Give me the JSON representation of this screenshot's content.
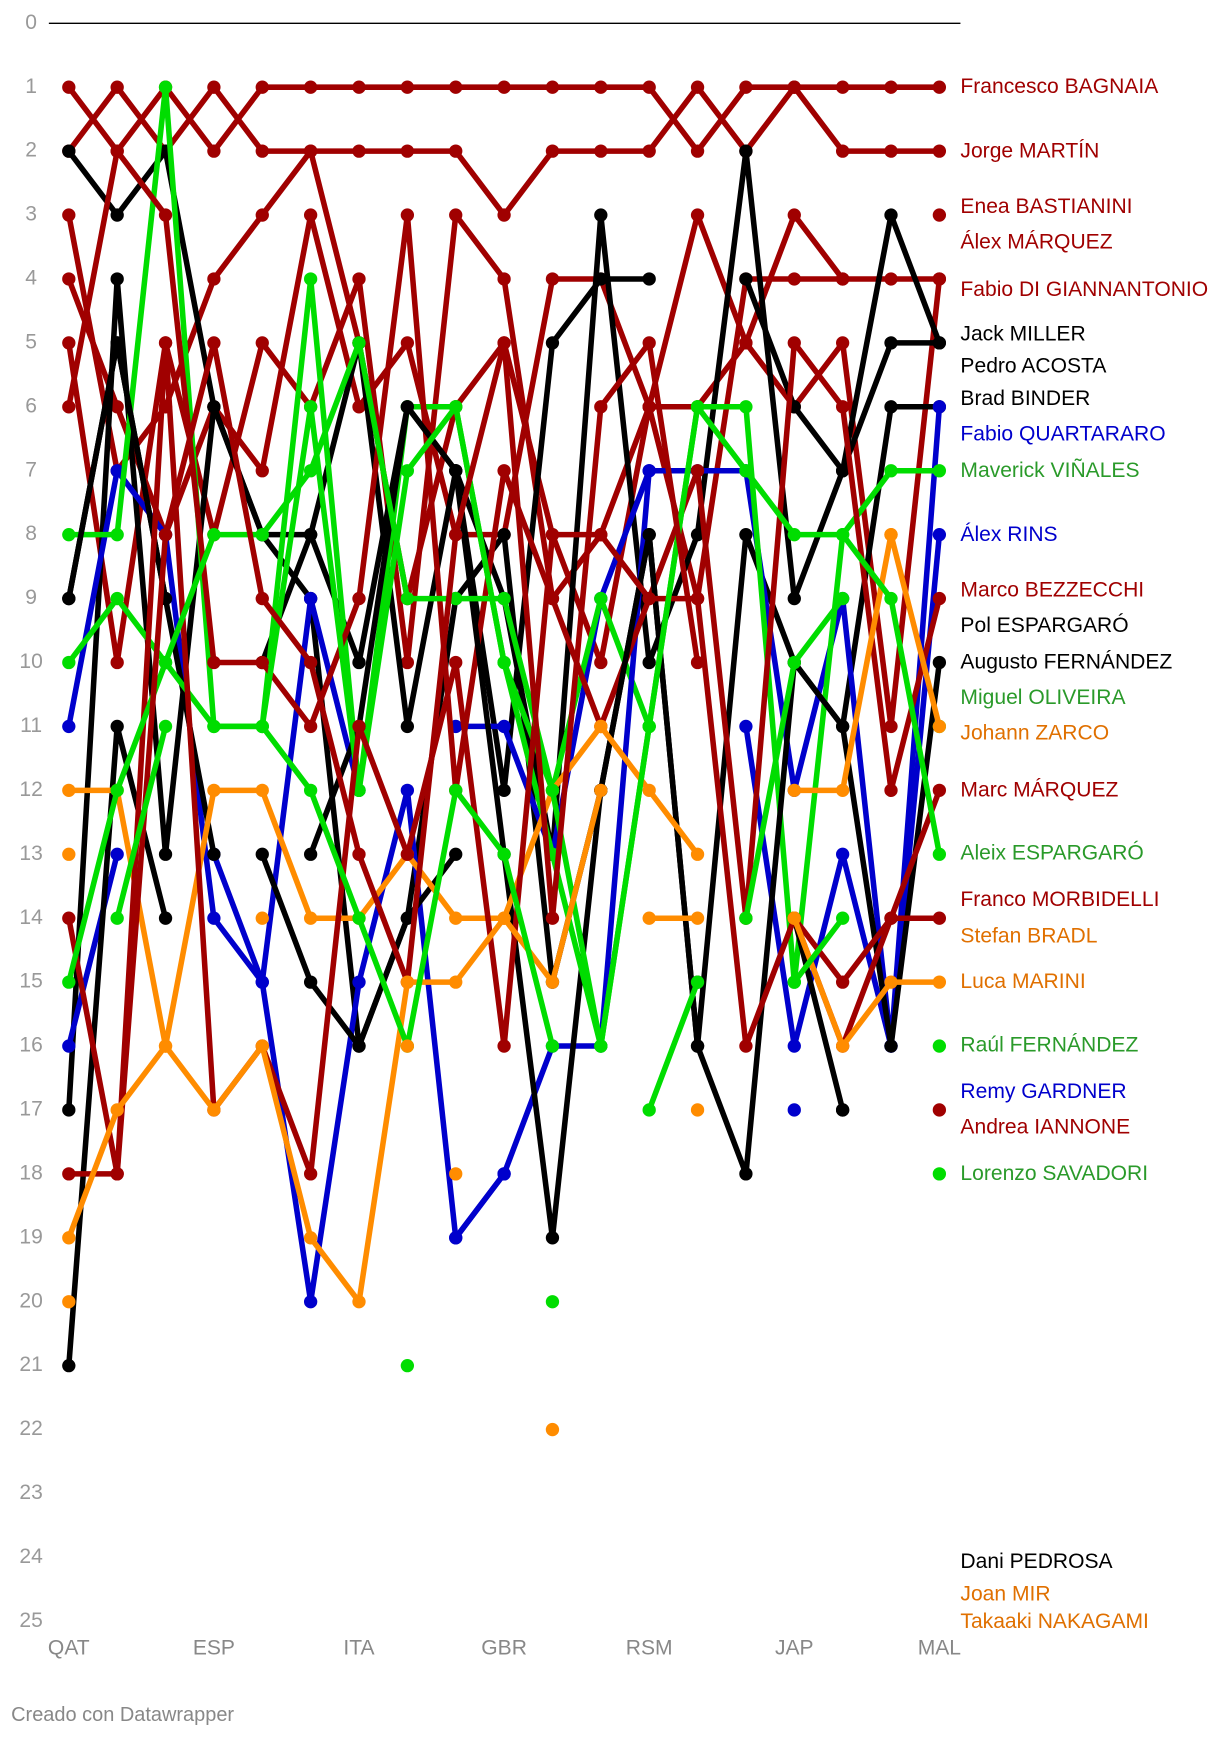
{
  "chart_data": {
    "type": "bump",
    "footer": "Creado con Datawrapper",
    "categories": [
      "QAT",
      null,
      null,
      "ESP",
      null,
      null,
      "ITA",
      null,
      null,
      "GBR",
      null,
      null,
      "RSM",
      null,
      null,
      "JAP",
      null,
      null,
      "MAL"
    ],
    "ylim": [
      0,
      25
    ],
    "yticks": [
      0,
      1,
      2,
      3,
      4,
      5,
      6,
      7,
      8,
      9,
      10,
      11,
      12,
      13,
      14,
      15,
      16,
      17,
      18,
      19,
      20,
      21,
      22,
      23,
      24,
      25
    ],
    "y_reversed": true,
    "series": [
      {
        "name": "Francesco BAGNAIA",
        "color": "#a00000",
        "label_color": "#a00000",
        "values": [
          1,
          2,
          1,
          2,
          1,
          1,
          1,
          1,
          1,
          1,
          1,
          1,
          1,
          2,
          1,
          1,
          1,
          1,
          1
        ]
      },
      {
        "name": "Jorge MARTÍN",
        "color": "#a00000",
        "label_color": "#a00000",
        "values": [
          2,
          1,
          2,
          1,
          2,
          2,
          2,
          2,
          2,
          3,
          2,
          2,
          2,
          1,
          2,
          1,
          2,
          2,
          2
        ]
      },
      {
        "name": "Enea BASTIANINI",
        "color": "#a00000",
        "label_color": "#a00000",
        "values": [
          3,
          7,
          6,
          4,
          3,
          2,
          5,
          9,
          6,
          5,
          8,
          10,
          6,
          3,
          5,
          3,
          4,
          null,
          3
        ]
      },
      {
        "name": "Álex MÁRQUEZ",
        "color": "#a00000",
        "label_color": "#a00000",
        "values": [
          5,
          10,
          5,
          8,
          5,
          6,
          4,
          10,
          3,
          4,
          9,
          8,
          6,
          6,
          5,
          6,
          5,
          11,
          4
        ]
      },
      {
        "name": "Fabio DI GIANNANTONIO",
        "color": "#a00000",
        "label_color": "#a00000",
        "values": [
          4,
          6,
          8,
          6,
          7,
          3,
          6,
          5,
          8,
          8,
          4,
          4,
          6,
          9,
          4,
          4,
          4,
          4,
          4
        ]
      },
      {
        "name": "Jack MILLER",
        "color": "#000000",
        "label_color": "#000000",
        "values": [
          2,
          3,
          2,
          6,
          8,
          8,
          10,
          6,
          7,
          9,
          13,
          3,
          10,
          8,
          2,
          9,
          7,
          3,
          5
        ]
      },
      {
        "name": "Pedro ACOSTA",
        "color": "#000000",
        "label_color": "#000000",
        "values": [
          9,
          5,
          9,
          null,
          10,
          8,
          5,
          11,
          7,
          12,
          5,
          4,
          4,
          null,
          4,
          6,
          7,
          5,
          5
        ]
      },
      {
        "name": "Brad BINDER",
        "color": "#000000",
        "label_color": "#000000",
        "values": [
          17,
          4,
          13,
          6,
          8,
          9,
          16,
          14,
          9,
          8,
          15,
          12,
          8,
          16,
          8,
          10,
          11,
          6,
          6
        ]
      },
      {
        "name": "Fabio QUARTARARO",
        "color": "#0000cc",
        "label_color": "#0000cc",
        "values": [
          11,
          7,
          8,
          14,
          15,
          9,
          12,
          null,
          11,
          11,
          13,
          9,
          7,
          7,
          7,
          12,
          9,
          16,
          6
        ]
      },
      {
        "name": "Maverick VIÑALES",
        "color": "#00dd00",
        "label_color": "#2a9a2a",
        "values": [
          8,
          8,
          1,
          11,
          11,
          4,
          12,
          6,
          6,
          10,
          12,
          9,
          11,
          6,
          6,
          15,
          8,
          7,
          7
        ]
      },
      {
        "name": "Álex RINS",
        "color": "#0000cc",
        "label_color": "#0000cc",
        "values": [
          16,
          13,
          null,
          13,
          15,
          20,
          15,
          12,
          19,
          18,
          16,
          16,
          7,
          null,
          11,
          16,
          13,
          16,
          8
        ]
      },
      {
        "name": "Marco BEZZECCHI",
        "color": "#a00000",
        "label_color": "#a00000",
        "values": [
          6,
          2,
          3,
          10,
          10,
          11,
          9,
          3,
          12,
          7,
          9,
          11,
          9,
          7,
          14,
          5,
          6,
          12,
          9
        ]
      },
      {
        "name": "Pol ESPARGARÓ",
        "color": "#000000",
        "label_color": "#000000",
        "values": [
          21,
          11,
          14,
          null,
          13,
          15,
          16,
          14,
          13,
          null,
          null,
          12,
          null,
          15,
          null,
          14,
          17,
          null,
          null
        ]
      },
      {
        "name": "Augusto FERNÁNDEZ",
        "color": "#000000",
        "label_color": "#000000",
        "values": [
          9,
          5,
          9,
          13,
          null,
          13,
          11,
          6,
          7,
          13,
          19,
          12,
          8,
          16,
          18,
          10,
          11,
          16,
          10
        ]
      },
      {
        "name": "Miguel OLIVEIRA",
        "color": "#00dd00",
        "label_color": "#2a9a2a",
        "values": [
          10,
          9,
          10,
          11,
          11,
          6,
          12,
          7,
          6,
          10,
          13,
          16,
          11,
          null,
          14,
          10,
          9,
          null,
          11
        ]
      },
      {
        "name": "Johann ZARCO",
        "color": "#ff8c00",
        "label_color": "#e07000",
        "values": [
          12,
          12,
          16,
          12,
          12,
          14,
          14,
          13,
          14,
          14,
          12,
          11,
          12,
          13,
          null,
          12,
          12,
          8,
          11
        ]
      },
      {
        "name": "Marc MÁRQUEZ",
        "color": "#a00000",
        "label_color": "#a00000",
        "values": [
          14,
          18,
          5,
          17,
          16,
          18,
          11,
          13,
          10,
          16,
          8,
          8,
          9,
          9,
          16,
          14,
          16,
          14,
          12
        ]
      },
      {
        "name": "Aleix ESPARGARÓ",
        "color": "#00dd00",
        "label_color": "#2a9a2a",
        "values": [
          15,
          12,
          10,
          8,
          8,
          7,
          5,
          9,
          9,
          9,
          12,
          16,
          11,
          6,
          7,
          8,
          8,
          9,
          13
        ]
      },
      {
        "name": "Franco MORBIDELLI",
        "color": "#a00000",
        "label_color": "#a00000",
        "values": [
          18,
          18,
          8,
          5,
          9,
          10,
          13,
          15,
          8,
          5,
          14,
          6,
          5,
          10,
          null,
          14,
          15,
          14,
          14
        ]
      },
      {
        "name": "Stefan BRADL",
        "color": "#ff8c00",
        "label_color": "#e07000",
        "values": [
          null,
          null,
          null,
          null,
          null,
          null,
          null,
          null,
          null,
          null,
          null,
          null,
          14,
          14,
          null,
          14,
          null,
          null,
          null
        ]
      },
      {
        "name": "Luca MARINI",
        "color": "#ff8c00",
        "label_color": "#e07000",
        "values": [
          19,
          17,
          16,
          17,
          16,
          19,
          20,
          15,
          15,
          14,
          15,
          12,
          null,
          17,
          null,
          14,
          16,
          15,
          15
        ]
      },
      {
        "name": "Raúl FERNÁNDEZ",
        "color": "#00dd00",
        "label_color": "#2a9a2a",
        "values": [
          null,
          14,
          11,
          null,
          11,
          12,
          14,
          16,
          12,
          13,
          16,
          null,
          17,
          15,
          null,
          15,
          14,
          null,
          16
        ]
      },
      {
        "name": "Remy GARDNER",
        "color": "#0000cc",
        "label_color": "#0000cc",
        "values": [
          null,
          null,
          null,
          null,
          null,
          null,
          null,
          null,
          19,
          18,
          null,
          null,
          null,
          null,
          null,
          17,
          null,
          null,
          null
        ]
      },
      {
        "name": "Andrea IANNONE",
        "color": "#a00000",
        "label_color": "#a00000",
        "values": [
          null,
          null,
          null,
          null,
          null,
          null,
          null,
          null,
          null,
          null,
          null,
          null,
          null,
          null,
          null,
          null,
          null,
          null,
          17
        ]
      },
      {
        "name": "Lorenzo SAVADORI",
        "color": "#00dd00",
        "label_color": "#2a9a2a",
        "values": [
          null,
          null,
          null,
          null,
          null,
          null,
          null,
          21,
          null,
          null,
          20,
          null,
          null,
          null,
          null,
          null,
          null,
          null,
          18
        ]
      },
      {
        "name": "Dani PEDROSA",
        "color": "#000000",
        "label_color": "#000000",
        "values": [
          null,
          null,
          null,
          null,
          null,
          null,
          null,
          null,
          null,
          null,
          null,
          null,
          null,
          null,
          null,
          null,
          17,
          null,
          null
        ]
      },
      {
        "name": "Joan MIR",
        "color": "#ff8c00",
        "label_color": "#e07000",
        "values": [
          20,
          null,
          null,
          null,
          null,
          null,
          null,
          null,
          18,
          null,
          22,
          null,
          null,
          null,
          null,
          null,
          null,
          null,
          null
        ]
      },
      {
        "name": "Takaaki NAKAGAMI",
        "color": "#ff8c00",
        "label_color": "#e07000",
        "values": [
          13,
          null,
          null,
          null,
          14,
          null,
          null,
          16,
          null,
          null,
          null,
          11,
          null,
          null,
          null,
          null,
          null,
          8,
          null
        ]
      }
    ]
  }
}
